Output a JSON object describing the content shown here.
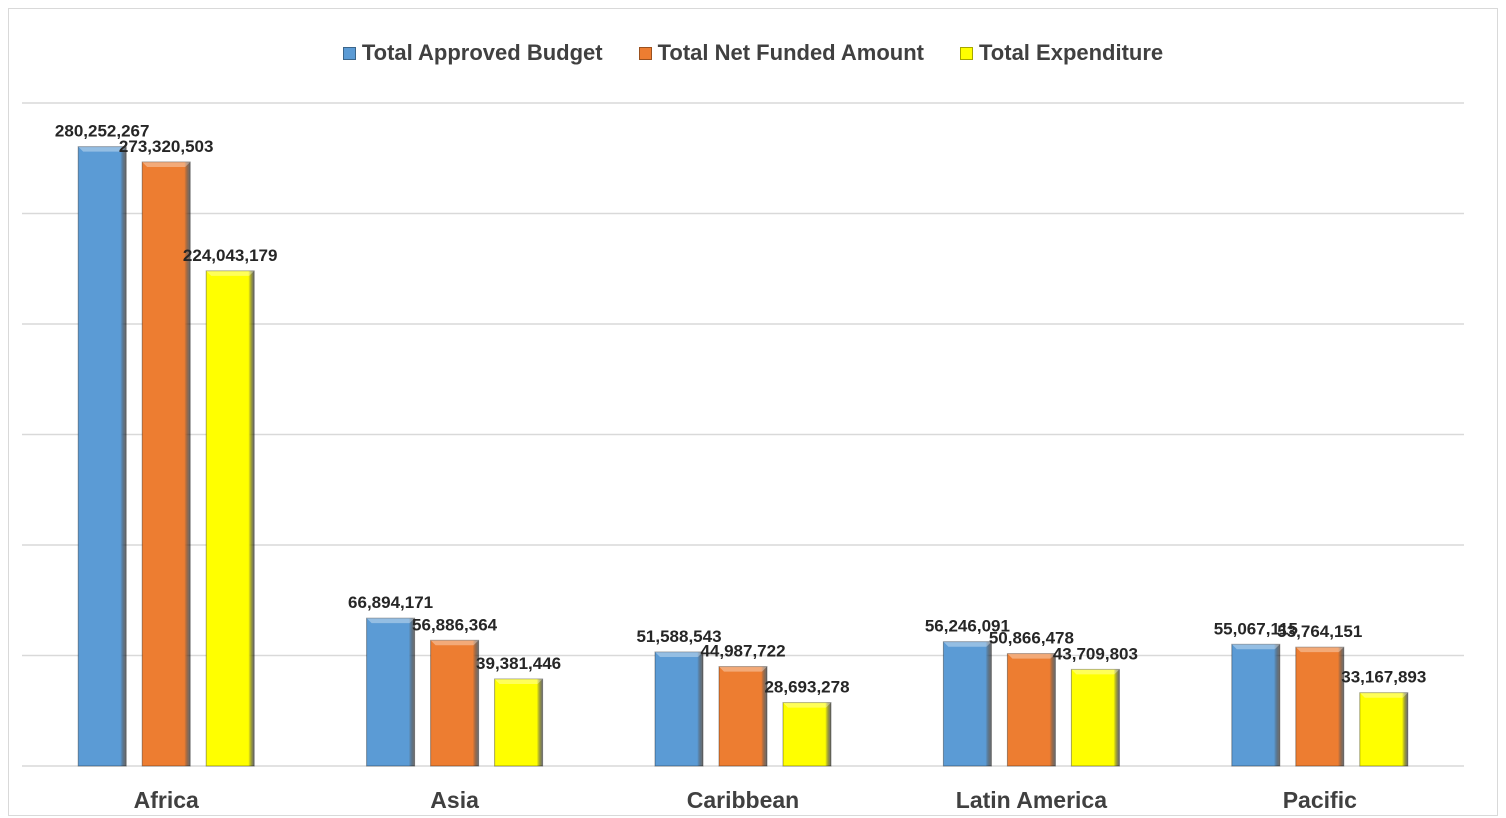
{
  "chart_data": {
    "type": "bar",
    "title": "",
    "xlabel": "",
    "ylabel": "",
    "categories": [
      "Africa",
      "Asia",
      "Caribbean",
      "Latin America",
      "Pacific"
    ],
    "series": [
      {
        "name": "Total Approved Budget",
        "color": "#5b9bd5",
        "values": [
          280252267,
          66894171,
          51588543,
          56246091,
          55067115
        ],
        "labels": [
          "280,252,267",
          "66,894,171",
          "51,588,543",
          "56,246,091",
          "55,067,115"
        ]
      },
      {
        "name": "Total Net Funded Amount",
        "color": "#ed7d31",
        "values": [
          273320503,
          56886364,
          44987722,
          50866478,
          53764151
        ],
        "labels": [
          "273,320,503",
          "56,886,364",
          "44,987,722",
          "50,866,478",
          "53,764,151"
        ]
      },
      {
        "name": "Total Expenditure",
        "color": "#ffff00",
        "values": [
          224043179,
          39381446,
          28693278,
          43709803,
          33167893
        ],
        "labels": [
          "224,043,179",
          "39,381,446",
          "28,693,278",
          "43,709,803",
          "33,167,893"
        ]
      }
    ],
    "ylim": [
      0,
      300000000
    ],
    "y_axis_labels_shown": false,
    "grid": true,
    "legend_position": "top-center"
  }
}
